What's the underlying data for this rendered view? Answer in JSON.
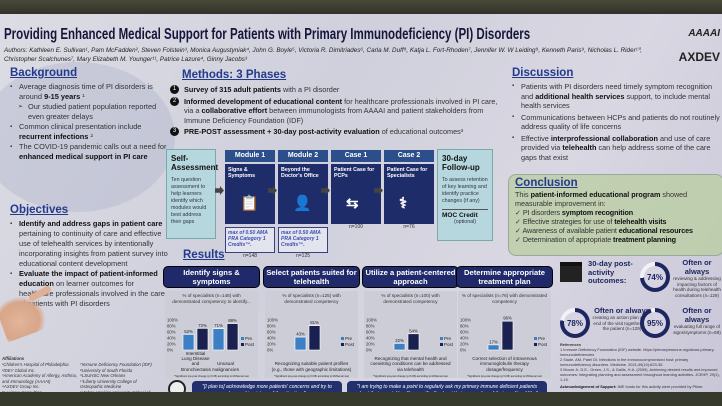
{
  "title": "Providing Enhanced Medical Support for Patients with Primary Immunodeficiency (PI) Disorders",
  "authors": "Authors: Kathleen E. Sullivan¹, Pam McFadden², Steven Folstein³, Monica Augustyniak⁴, John G. Boyle⁵, Victoria R. Dimitriades⁶, Carla M. Duff⁸, Katja L. Fort-Rhoden⁷, Jennifer W. W Leiding⁹, Kenneth Paris⁹, Nicholas L. Rider¹⁰, Christopher Scalchunes⁷, Mary Elizabeth M. Younger¹¹, Patrice Lazure⁴, Ginny Jacobs³",
  "logos": {
    "aaaai": "AAAAI",
    "axdev": "AXDEV"
  },
  "background": {
    "heading": "Background",
    "items": [
      {
        "pre": "Average diagnosis time of PI disorders is around ",
        "bold": "9-15 years",
        "post": " ¹"
      },
      {
        "sub": true,
        "pre": "Our studied patient population reported even greater delays",
        "bold": "",
        "post": ""
      },
      {
        "pre": "Common clinical presentation include ",
        "bold": "recurrent infections",
        "post": " ²"
      },
      {
        "pre": "The COVID-19 pandemic calls out a need for ",
        "bold": "enhanced medical support in PI care",
        "post": ""
      }
    ]
  },
  "objectives": {
    "heading": "Objectives",
    "items": [
      {
        "pre": "",
        "bold": "Identify and address gaps in patient care",
        "post": " pertaining to continuity of care and effective use of telehealth services by intentionally incorporating insights from patient survey into educational content development"
      },
      {
        "pre": "",
        "bold": "Evaluate the impact of patient-informed education",
        "post": " on learner outcomes for healthcare professionals involved in the care of patients with PI disorders"
      }
    ]
  },
  "affiliations": {
    "heading": "Affiliations",
    "col1": [
      "¹Children's Hospital of Philadelphia",
      "²IDEY Global Inc.",
      "³American Academy of Allergy, Asthma, and Immunology (AAAAI)",
      "⁴AXDEV Group Inc.",
      "⁵Lexicore Consulting",
      "⁶University of California, Davis Medical"
    ],
    "col2": [
      "⁷Immune Deficiency Foundation (IDF)",
      "⁸University of South Florida",
      "⁹LSUHSC New Orleans",
      "¹⁰Liberty University College of Osteopathic Medicine",
      "¹¹Johns Hopkins University School of Medicine"
    ]
  },
  "methods": {
    "heading": "Methods: 3 Phases",
    "items": [
      {
        "n": "1",
        "bold": "Survey of 315 adult patients",
        "post": " with a PI disorder"
      },
      {
        "n": "2",
        "bold": "Informed development of educational content",
        "post": " for healthcare professionals involved in PI care, via a ",
        "bold2": "collaborative effort",
        "post2": " between immunologists from AAAAI and patient stakeholders from Immune Deficiency Foundation (IDF)"
      },
      {
        "n": "3",
        "bold": "PRE-POST assessment + 30-day post-activity evaluation",
        "post": " of educational outcomes³"
      }
    ]
  },
  "flow": {
    "self": {
      "title": "Self-Assessment",
      "text": "Ten question assessment to help learners identify which modules would best address their gaps"
    },
    "modules": [
      {
        "label": "Module 1",
        "desc": "Signs & Symptoms",
        "icon": "clipboard-icon",
        "credit": "max of 0.50 AMA PRA Category 1 Credits™.",
        "n": "n=148"
      },
      {
        "label": "Module 2",
        "desc": "Beyond the Doctor's Office",
        "icon": "doctor-icon",
        "credit": "max of 0.50 AMA PRA Category 1 Credits™.",
        "n": "n=125"
      },
      {
        "label": "Case 1",
        "desc": "Patient Case for PCPs",
        "icon": "exchange-icon",
        "credit": "",
        "n": "n=100"
      },
      {
        "label": "Case 2",
        "desc": "Patient Case for Specialists",
        "icon": "stethoscope-icon",
        "credit": "",
        "n": "n=76"
      }
    ],
    "followup": {
      "title": "30-day Follow-up",
      "text": "To assess retention of key learning and identify practice changes (if any)",
      "moc": "MOC Credit",
      "moc_note": "(optional)"
    }
  },
  "results": {
    "heading": "Results",
    "legend": [
      "Pre",
      "Post"
    ],
    "footnote": "*Significant pre-post change (p<0.05) according to McNemar test",
    "quotes": [
      "\"[I plan to] acknowledge more patients' concerns and try to have a big picture of the situation.\"",
      "\"I am trying to make a point to regularly ask my primary immune deficient patients about their mental health, specifically about their perception of their quality of life.\""
    ]
  },
  "chart_data": [
    {
      "type": "bar",
      "title": "Identify signs & symptoms",
      "subtitle": "% of specialists (n=148) with demonstrated competency to identify...",
      "categories": [
        "Interstitial Lung Disease and Bronchiectasis",
        "Unusual malignancies"
      ],
      "series": [
        {
          "name": "Pre",
          "values": [
            52,
            71
          ]
        },
        {
          "name": "Post",
          "values": [
            72,
            88
          ]
        }
      ],
      "yticks": [
        "0%",
        "20%",
        "40%",
        "60%",
        "80%",
        "100%"
      ],
      "ylim": [
        0,
        100
      ]
    },
    {
      "type": "bar",
      "title": "Select patients suited for telehealth",
      "subtitle": "% of specialists (n=125) with demonstrated competency",
      "categories": [
        "Recognizing suitable patient profiles (e.g., those with geographic limitations)"
      ],
      "series": [
        {
          "name": "Pre",
          "values": [
            43
          ]
        },
        {
          "name": "Post",
          "values": [
            81
          ]
        }
      ],
      "yticks": [
        "0%",
        "20%",
        "40%",
        "60%",
        "80%",
        "100%"
      ],
      "ylim": [
        0,
        100
      ]
    },
    {
      "type": "bar",
      "title": "Utilize a patient-centered approach",
      "subtitle": "% of specialists (n=100) with demonstrated competency",
      "categories": [
        "Recognizing that mental health and coexisting conditions can be addressed via telehealth"
      ],
      "series": [
        {
          "name": "Pre",
          "values": [
            22
          ]
        },
        {
          "name": "Post",
          "values": [
            54
          ]
        }
      ],
      "yticks": [
        "0%",
        "20%",
        "40%",
        "60%",
        "80%",
        "100%"
      ],
      "ylim": [
        0,
        100
      ]
    },
    {
      "type": "bar",
      "title": "Determine appropriate treatment plan",
      "subtitle": "% of specialists (n=76) with demonstrated competency",
      "categories": [
        "Correct selection of intravenous immunoglobulin therapy dosage/frequency"
      ],
      "series": [
        {
          "name": "Pre",
          "values": [
            17
          ]
        },
        {
          "name": "Post",
          "values": [
            96
          ]
        }
      ],
      "yticks": [
        "0%",
        "20%",
        "40%",
        "60%",
        "80%",
        "100%"
      ],
      "ylim": [
        0,
        100
      ]
    }
  ],
  "colors": {
    "pre": "#3d7fc4",
    "post": "#1a2150",
    "navy": "#202a6a"
  },
  "discussion": {
    "heading": "Discussion",
    "items": [
      {
        "pre": "Patients with PI disorders need timely symptom recognition and ",
        "bold": "additional health services",
        "post": " support, to include mental health services"
      },
      {
        "pre": "Communications between HCPs and patients do not routinely address quality of life concerns",
        "bold": "",
        "post": ""
      },
      {
        "pre": "Effective ",
        "bold": "interprofessional collaboration",
        "post": " and use of care provided via ",
        "bold2": "telehealth",
        "post2": " can help address some of the care gaps that exist"
      }
    ]
  },
  "conclusion": {
    "heading": "Conclusion",
    "intro_pre": "This ",
    "intro_bold": "patient-informed educational program",
    "intro_post": " showed measurable improvement in:",
    "items": [
      {
        "pre": "PI disorders ",
        "bold": "symptom recognition"
      },
      {
        "pre": "Effective strategies for use of ",
        "bold": "telehealth visits"
      },
      {
        "pre": "Awareness of available patient ",
        "bold": "educational resources"
      },
      {
        "pre": "Determination of appropriate ",
        "bold": "treatment planning"
      }
    ]
  },
  "outcomes": {
    "heading": "30-day post-activity outcomes:",
    "items": [
      {
        "percent": 74,
        "label": "74%",
        "title": "Often or always",
        "text": "reviewing & addressing impacting factors of health during telehealth consultations (n=129)"
      },
      {
        "percent": 78,
        "label": "78%",
        "title": "Often or always",
        "text": "creating an action plan at the end of the visit together with the patient (n=129)"
      },
      {
        "percent": 95,
        "label": "95%",
        "title": "Often or always",
        "text": "evaluating full range of signs/symptoms (n=69)"
      }
    ]
  },
  "references": {
    "heading": "References",
    "items": [
      "1  Immune Deficiency Foundation (IDF) website. https://primaryimmune.org/about-primary-immunodeficiencies",
      "2  Slade, AM, Patel DI. Infections in the immunocompromised host: primary immunodeficiency disorders. Medicine. 2021;49(10):623-30.",
      "3  Moore Jr, D.E., Green, J.S., & Gallis, H.A. (2009). Achieving desired results and improved outcomes: integrating planning and assessment throughout learning activities. JCEHP, 29(1), 1-15."
    ],
    "ack_bold": "Acknowledgement of Support:",
    "ack": " IME funds for this activity were provided by Pfizer."
  }
}
